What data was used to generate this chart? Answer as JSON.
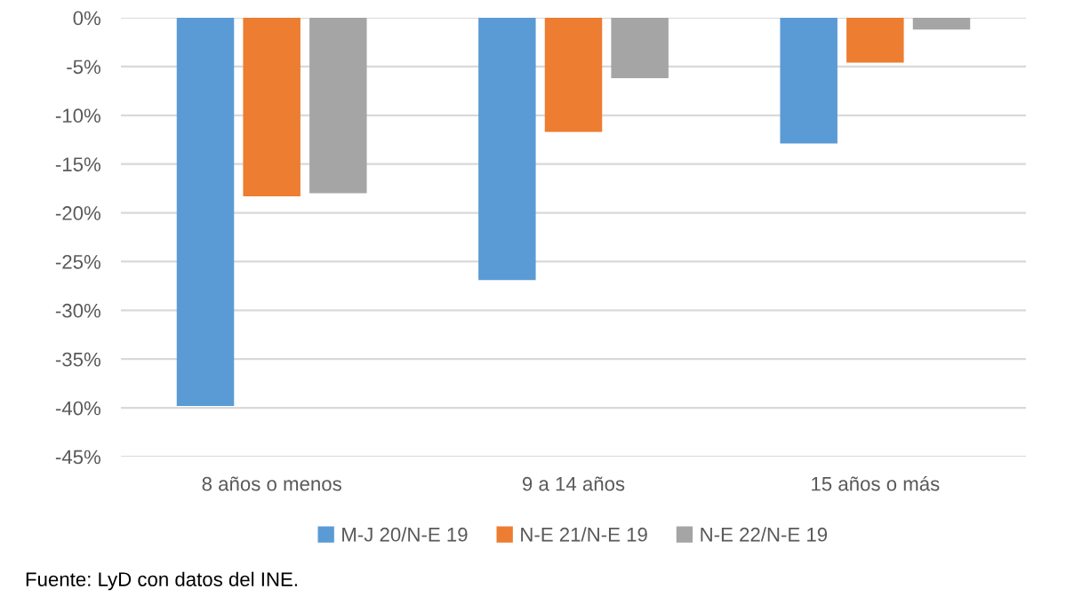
{
  "chart_data": {
    "type": "bar",
    "categories": [
      "8 años o menos",
      "9 a 14 años",
      "15 años o más"
    ],
    "series": [
      {
        "name": "M-J 20/N-E 19",
        "color": "#5b9bd5",
        "values": [
          -39.8,
          -26.9,
          -12.9
        ]
      },
      {
        "name": "N-E 21/N-E 19",
        "color": "#ed7d31",
        "values": [
          -18.3,
          -11.7,
          -4.6
        ]
      },
      {
        "name": "N-E 22/N-E 19",
        "color": "#a5a5a5",
        "values": [
          -18.0,
          -6.2,
          -1.2
        ]
      }
    ],
    "ylim": [
      -45,
      0
    ],
    "yticks": [
      {
        "value": 0,
        "label": "0%"
      },
      {
        "value": -5,
        "label": "-5%"
      },
      {
        "value": -10,
        "label": "-10%"
      },
      {
        "value": -15,
        "label": "-15%"
      },
      {
        "value": -20,
        "label": "-20%"
      },
      {
        "value": -25,
        "label": "-25%"
      },
      {
        "value": -30,
        "label": "-30%"
      },
      {
        "value": -35,
        "label": "-35%"
      },
      {
        "value": -40,
        "label": "-40%"
      },
      {
        "value": -45,
        "label": "-45%"
      }
    ],
    "grid": "y",
    "legend": "bottom",
    "annotations": [
      "Fuente: LyD con datos del INE."
    ]
  }
}
